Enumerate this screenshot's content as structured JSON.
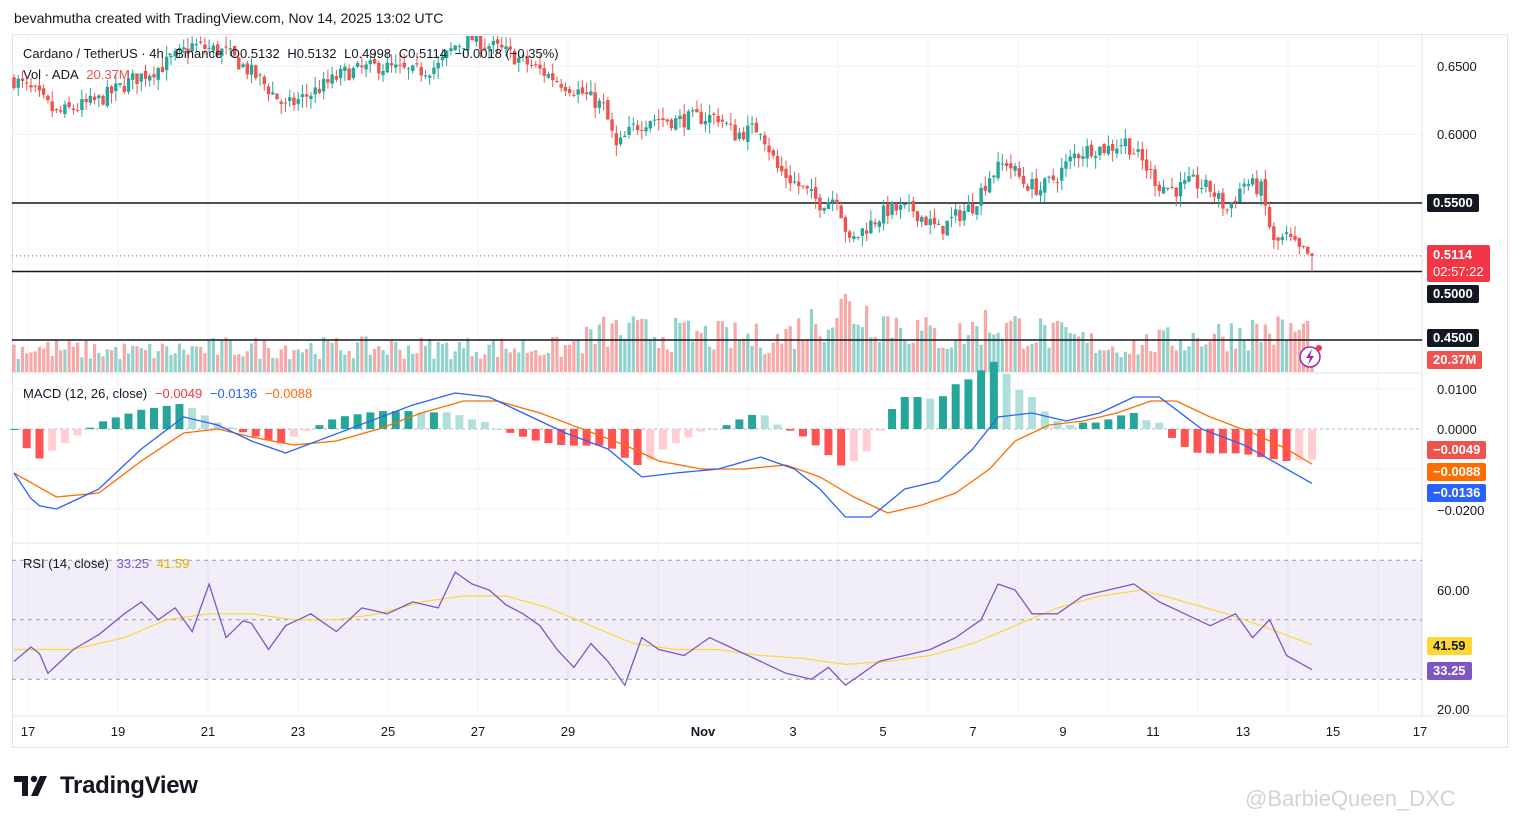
{
  "header": {
    "credit": "bevahmutha created with TradingView.com, Nov 14, 2025 13:02 UTC"
  },
  "main_legend": {
    "symbol": "Cardano / TetherUS · 4h · Binance",
    "open": "O0.5132",
    "high": "H0.5132",
    "low": "L0.4998",
    "close": "C0.5114",
    "change": "−0.0018 (−0.35%)",
    "vol_label": "Vol · ADA",
    "vol_value": "20.37M"
  },
  "macd_legend": {
    "label": "MACD (12, 26, close)",
    "hist": "−0.0049",
    "macd": "−0.0136",
    "signal": "−0.0088"
  },
  "rsi_legend": {
    "label": "RSI (14, close)",
    "rsi": "33.25",
    "ma": "41.59"
  },
  "price_axis": {
    "ticks": [
      "0.6500",
      "0.6000",
      "0.5500",
      "0.5000",
      "0.4500"
    ]
  },
  "price_labels": {
    "current": "0.5114",
    "countdown": "02:57:22",
    "level_055": "0.5500",
    "level_050": "0.5000",
    "level_045": "0.4500",
    "volume": "20.37M"
  },
  "macd_axis": {
    "ticks": [
      "0.0100",
      "0.0000",
      "−0.0200"
    ],
    "hist_label": "−0.0049",
    "signal_label": "−0.0088",
    "macd_label": "−0.0136"
  },
  "rsi_axis": {
    "ticks": [
      "60.00",
      "20.00"
    ],
    "ma_label": "41.59",
    "rsi_label": "33.25"
  },
  "time_axis": {
    "ticks": [
      "17",
      "19",
      "21",
      "23",
      "25",
      "27",
      "29",
      "Nov",
      "3",
      "5",
      "7",
      "9",
      "11",
      "13",
      "15",
      "17"
    ]
  },
  "footer": {
    "logo_text": "TradingView",
    "watermark": "@BarbieQueen_DXC"
  },
  "colors": {
    "up": "#26a69a",
    "down": "#ef5350",
    "macd": "#2962ff",
    "signal": "#ff6d00",
    "rsi": "#7e57c2",
    "rsi_ma": "#fdd835"
  },
  "chart_data": {
    "type": "candlestick",
    "title": "Cardano / TetherUS · 4h · Binance",
    "price_keypoints": [
      [
        0,
        0.64
      ],
      [
        5,
        0.63
      ],
      [
        10,
        0.615
      ],
      [
        20,
        0.625
      ],
      [
        28,
        0.64
      ],
      [
        35,
        0.65
      ],
      [
        42,
        0.665
      ],
      [
        50,
        0.66
      ],
      [
        58,
        0.64
      ],
      [
        64,
        0.62
      ],
      [
        70,
        0.63
      ],
      [
        78,
        0.645
      ],
      [
        86,
        0.65
      ],
      [
        94,
        0.645
      ],
      [
        100,
        0.65
      ],
      [
        104,
        0.665
      ],
      [
        108,
        0.67
      ],
      [
        116,
        0.66
      ],
      [
        122,
        0.65
      ],
      [
        128,
        0.64
      ],
      [
        134,
        0.63
      ],
      [
        139,
        0.62
      ],
      [
        142,
        0.59
      ],
      [
        146,
        0.605
      ],
      [
        150,
        0.612
      ],
      [
        156,
        0.61
      ],
      [
        160,
        0.612
      ],
      [
        166,
        0.613
      ],
      [
        170,
        0.6
      ],
      [
        176,
        0.605
      ],
      [
        180,
        0.575
      ],
      [
        186,
        0.56
      ],
      [
        190,
        0.55
      ],
      [
        194,
        0.555
      ],
      [
        197,
        0.52
      ],
      [
        200,
        0.53
      ],
      [
        206,
        0.545
      ],
      [
        212,
        0.545
      ],
      [
        218,
        0.53
      ],
      [
        222,
        0.54
      ],
      [
        226,
        0.548
      ],
      [
        230,
        0.57
      ],
      [
        234,
        0.58
      ],
      [
        238,
        0.565
      ],
      [
        242,
        0.56
      ],
      [
        246,
        0.57
      ],
      [
        250,
        0.585
      ],
      [
        254,
        0.59
      ],
      [
        258,
        0.59
      ],
      [
        262,
        0.595
      ],
      [
        266,
        0.58
      ],
      [
        270,
        0.563
      ],
      [
        274,
        0.56
      ],
      [
        278,
        0.565
      ],
      [
        282,
        0.56
      ],
      [
        286,
        0.545
      ],
      [
        290,
        0.565
      ],
      [
        294,
        0.56
      ],
      [
        297,
        0.52
      ],
      [
        300,
        0.525
      ],
      [
        303,
        0.515
      ],
      [
        306,
        0.511
      ]
    ],
    "volume_keypoints": [
      [
        0,
        0.3
      ],
      [
        30,
        0.25
      ],
      [
        50,
        0.3
      ],
      [
        130,
        0.3
      ],
      [
        140,
        0.5
      ],
      [
        180,
        0.4
      ],
      [
        196,
        0.8
      ],
      [
        220,
        0.4
      ],
      [
        230,
        0.6
      ],
      [
        260,
        0.3
      ],
      [
        290,
        0.5
      ],
      [
        306,
        0.5
      ]
    ],
    "macd_series": [
      [
        0,
        -0.011
      ],
      [
        5,
        -0.019
      ],
      [
        10,
        -0.02
      ],
      [
        20,
        -0.015
      ],
      [
        30,
        -0.005
      ],
      [
        40,
        0.003
      ],
      [
        48,
        0.001
      ],
      [
        56,
        -0.003
      ],
      [
        64,
        -0.006
      ],
      [
        74,
        -0.002
      ],
      [
        84,
        0.002
      ],
      [
        94,
        0.006
      ],
      [
        104,
        0.009
      ],
      [
        112,
        0.008
      ],
      [
        120,
        0.004
      ],
      [
        130,
        -0.001
      ],
      [
        140,
        -0.005
      ],
      [
        148,
        -0.012
      ],
      [
        156,
        -0.011
      ],
      [
        166,
        -0.01
      ],
      [
        176,
        -0.007
      ],
      [
        184,
        -0.01
      ],
      [
        190,
        -0.015
      ],
      [
        196,
        -0.022
      ],
      [
        202,
        -0.022
      ],
      [
        210,
        -0.015
      ],
      [
        218,
        -0.013
      ],
      [
        226,
        -0.005
      ],
      [
        232,
        0.003
      ],
      [
        240,
        0.004
      ],
      [
        248,
        0.002
      ],
      [
        256,
        0.004
      ],
      [
        264,
        0.008
      ],
      [
        270,
        0.008
      ],
      [
        280,
        0.0
      ],
      [
        290,
        -0.004
      ],
      [
        300,
        -0.01
      ],
      [
        306,
        -0.0136
      ]
    ],
    "signal_series": [
      [
        0,
        -0.011
      ],
      [
        10,
        -0.017
      ],
      [
        20,
        -0.016
      ],
      [
        30,
        -0.008
      ],
      [
        40,
        -0.001
      ],
      [
        48,
        0.0
      ],
      [
        56,
        -0.002
      ],
      [
        66,
        -0.004
      ],
      [
        76,
        -0.003
      ],
      [
        86,
        0.0
      ],
      [
        96,
        0.004
      ],
      [
        106,
        0.007
      ],
      [
        114,
        0.007
      ],
      [
        124,
        0.004
      ],
      [
        134,
        0.0
      ],
      [
        144,
        -0.004
      ],
      [
        152,
        -0.008
      ],
      [
        162,
        -0.01
      ],
      [
        172,
        -0.01
      ],
      [
        182,
        -0.009
      ],
      [
        190,
        -0.012
      ],
      [
        198,
        -0.017
      ],
      [
        206,
        -0.021
      ],
      [
        214,
        -0.019
      ],
      [
        222,
        -0.016
      ],
      [
        230,
        -0.01
      ],
      [
        236,
        -0.003
      ],
      [
        244,
        0.001
      ],
      [
        252,
        0.002
      ],
      [
        260,
        0.004
      ],
      [
        268,
        0.007
      ],
      [
        274,
        0.007
      ],
      [
        282,
        0.003
      ],
      [
        292,
        -0.001
      ],
      [
        300,
        -0.005
      ],
      [
        306,
        -0.0088
      ]
    ],
    "rsi_series": [
      [
        0,
        36
      ],
      [
        5,
        42
      ],
      [
        8,
        32
      ],
      [
        14,
        40
      ],
      [
        20,
        45
      ],
      [
        26,
        52
      ],
      [
        30,
        56
      ],
      [
        34,
        50
      ],
      [
        38,
        54
      ],
      [
        42,
        46
      ],
      [
        46,
        62
      ],
      [
        50,
        44
      ],
      [
        55,
        51
      ],
      [
        60,
        40
      ],
      [
        64,
        48
      ],
      [
        70,
        52
      ],
      [
        76,
        46
      ],
      [
        82,
        54
      ],
      [
        88,
        52
      ],
      [
        94,
        56
      ],
      [
        100,
        54
      ],
      [
        104,
        66
      ],
      [
        108,
        62
      ],
      [
        112,
        60
      ],
      [
        116,
        55
      ],
      [
        120,
        52
      ],
      [
        124,
        48
      ],
      [
        128,
        40
      ],
      [
        132,
        34
      ],
      [
        136,
        42
      ],
      [
        140,
        36
      ],
      [
        144,
        28
      ],
      [
        148,
        44
      ],
      [
        152,
        40
      ],
      [
        158,
        38
      ],
      [
        164,
        44
      ],
      [
        170,
        40
      ],
      [
        176,
        36
      ],
      [
        182,
        32
      ],
      [
        188,
        30
      ],
      [
        192,
        34
      ],
      [
        196,
        28
      ],
      [
        200,
        32
      ],
      [
        204,
        36
      ],
      [
        210,
        38
      ],
      [
        216,
        40
      ],
      [
        222,
        44
      ],
      [
        228,
        50
      ],
      [
        232,
        62
      ],
      [
        236,
        60
      ],
      [
        240,
        52
      ],
      [
        246,
        52
      ],
      [
        252,
        58
      ],
      [
        258,
        60
      ],
      [
        264,
        62
      ],
      [
        270,
        56
      ],
      [
        276,
        52
      ],
      [
        282,
        48
      ],
      [
        288,
        52
      ],
      [
        292,
        44
      ],
      [
        296,
        50
      ],
      [
        300,
        38
      ],
      [
        306,
        33.25
      ]
    ],
    "rsi_ma_series": [
      [
        0,
        40
      ],
      [
        14,
        40
      ],
      [
        26,
        44
      ],
      [
        36,
        50
      ],
      [
        46,
        52
      ],
      [
        56,
        52
      ],
      [
        66,
        50
      ],
      [
        76,
        50
      ],
      [
        86,
        52
      ],
      [
        96,
        56
      ],
      [
        106,
        58
      ],
      [
        116,
        58
      ],
      [
        126,
        54
      ],
      [
        136,
        48
      ],
      [
        146,
        42
      ],
      [
        156,
        40
      ],
      [
        166,
        40
      ],
      [
        176,
        38
      ],
      [
        186,
        37
      ],
      [
        196,
        35
      ],
      [
        206,
        36
      ],
      [
        216,
        38
      ],
      [
        226,
        42
      ],
      [
        236,
        48
      ],
      [
        246,
        54
      ],
      [
        256,
        58
      ],
      [
        266,
        60
      ],
      [
        276,
        56
      ],
      [
        286,
        52
      ],
      [
        296,
        47
      ],
      [
        306,
        41.59
      ]
    ],
    "horizontal_levels": [
      0.55,
      0.5,
      0.45
    ],
    "y_range": [
      0.44,
      0.67
    ],
    "macd_range": [
      -0.025,
      0.013
    ],
    "rsi_range": [
      15,
      80
    ],
    "grid": true
  }
}
